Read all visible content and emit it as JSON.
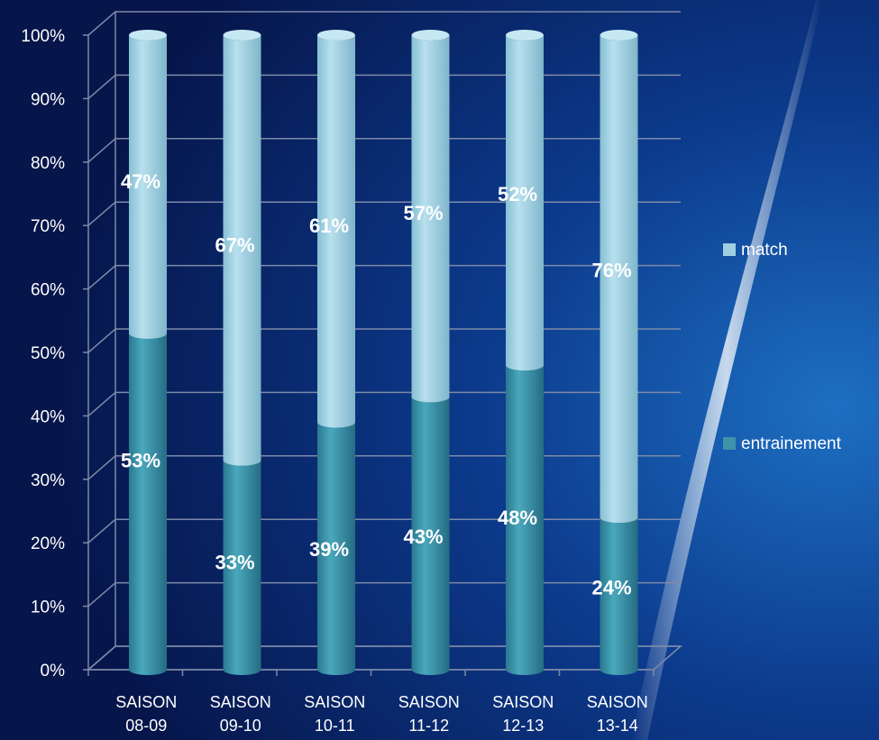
{
  "chart_data": {
    "type": "bar",
    "stacked": true,
    "percent_stacked": true,
    "style": "3d-cylinder",
    "categories": [
      [
        "SAISON",
        "08-09"
      ],
      [
        "SAISON",
        "09-10"
      ],
      [
        "SAISON",
        "10-11"
      ],
      [
        "SAISON",
        "11-12"
      ],
      [
        "SAISON",
        "12-13"
      ],
      [
        "SAISON",
        "13-14"
      ]
    ],
    "series": [
      {
        "name": "entrainement",
        "values": [
          53,
          33,
          39,
          43,
          48,
          24
        ],
        "labels": [
          "53%",
          "33%",
          "39%",
          "43%",
          "48%",
          "24%"
        ],
        "color": "#3d93a8"
      },
      {
        "name": "match",
        "values": [
          47,
          67,
          61,
          57,
          52,
          76
        ],
        "labels": [
          "47%",
          "67%",
          "61%",
          "57%",
          "52%",
          "76%"
        ],
        "color": "#9fcfe0"
      }
    ],
    "yticks": [
      "0%",
      "10%",
      "20%",
      "30%",
      "40%",
      "50%",
      "60%",
      "70%",
      "80%",
      "90%",
      "100%"
    ],
    "ylim": [
      0,
      100
    ],
    "grid": true,
    "legend_position": "right"
  },
  "colors": {
    "background_dark": "#061446",
    "background_light": "#1a6fc4",
    "grid": "#7d8aa8",
    "text": "#ffffff"
  }
}
